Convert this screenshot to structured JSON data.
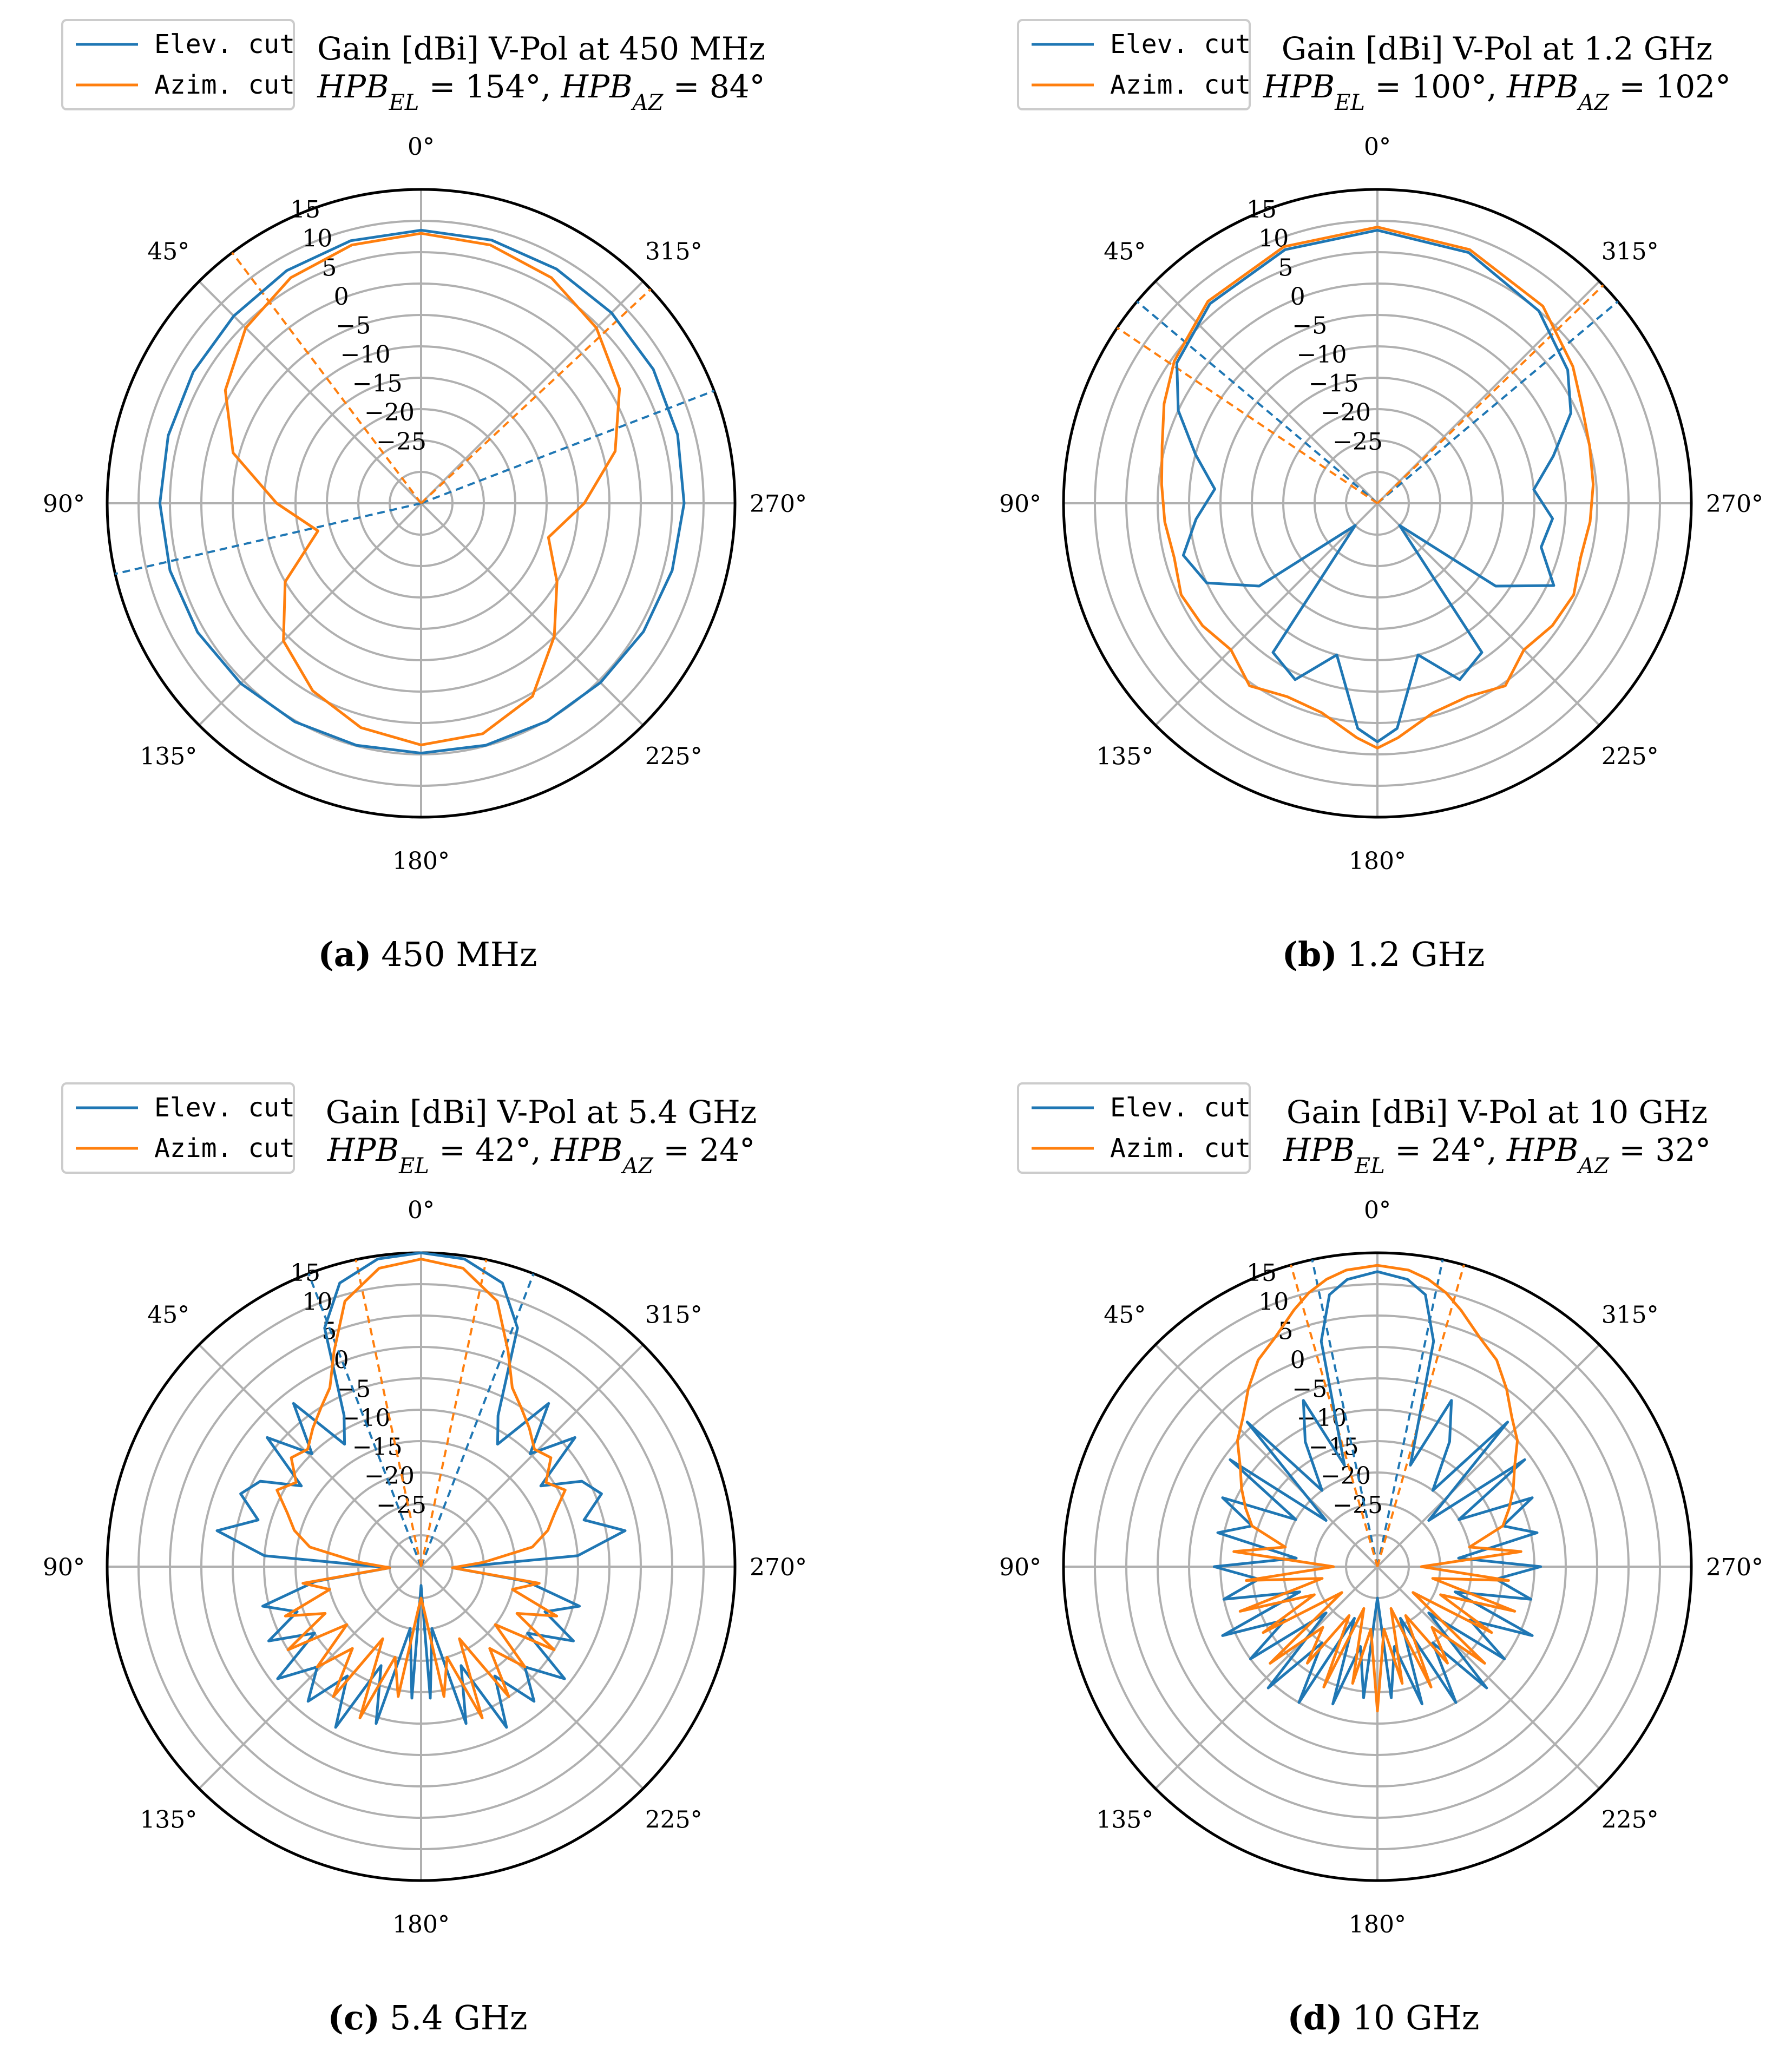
{
  "colors": {
    "elev": "#1f77b4",
    "azim": "#ff7f0e",
    "grid": "#b0b0b0",
    "frame": "#000000"
  },
  "chart_data": [
    {
      "type": "polar_line",
      "caption_letter": "(a)",
      "caption_text": "450 MHz",
      "title": "Gain [dBi] V-Pol at 450 MHz",
      "subtitle": "HPB_EL = 154°, HPB_AZ = 84°",
      "theta_direction": "counterclockwise",
      "theta_zero": "top",
      "rlim": [
        -35,
        15
      ],
      "radial_ticks": [
        "15",
        "10",
        "5",
        "0",
        "−5",
        "−10",
        "−15",
        "−20",
        "−25"
      ],
      "angle_labels": [
        "0°",
        "45°",
        "90°",
        "135°",
        "180°",
        "225°",
        "270°",
        "315°"
      ],
      "legend": {
        "location": "top-left",
        "entries": [
          "Elev. cut",
          "Azim. cut"
        ]
      },
      "hpb_lines": {
        "elev": [
          103,
          291
        ],
        "azim": [
          37,
          313
        ]
      },
      "series": [
        {
          "name": "Elev. cut",
          "color": "elev",
          "theta": [
            0,
            15,
            30,
            45,
            60,
            75,
            90,
            105,
            120,
            135,
            150,
            165,
            180,
            195,
            210,
            225,
            240,
            255,
            270,
            285,
            300,
            315,
            330,
            345,
            360
          ],
          "r": [
            8.5,
            8.3,
            7.8,
            7.2,
            6.9,
            6.7,
            6.6,
            6.4,
            6.1,
            5.6,
            5.2,
            4.9,
            4.8,
            4.9,
            5.1,
            5.4,
            5.9,
            6.4,
            6.9,
            7.3,
            7.7,
            7.9,
            8.1,
            8.4,
            8.5
          ]
        },
        {
          "name": "Azim. cut",
          "color": "azim",
          "theta": [
            0,
            15,
            30,
            45,
            60,
            75,
            90,
            105,
            120,
            135,
            150,
            165,
            180,
            195,
            210,
            225,
            240,
            255,
            270,
            285,
            300,
            315,
            330,
            345,
            360
          ],
          "r": [
            8.0,
            7.6,
            6.5,
            4.5,
            1.0,
            -4.0,
            -12.0,
            -18.0,
            -10.0,
            -4.0,
            -0.5,
            2.0,
            3.5,
            3.0,
            0.5,
            -5.0,
            -10.0,
            -14.0,
            -9.0,
            -3.0,
            1.5,
            4.5,
            6.5,
            7.6,
            8.0
          ]
        }
      ]
    },
    {
      "type": "polar_line",
      "caption_letter": "(b)",
      "caption_text": "1.2 GHz",
      "title": "Gain [dBi] V-Pol at 1.2 GHz",
      "subtitle": "HPB_EL = 100°, HPB_AZ = 102°",
      "theta_direction": "counterclockwise",
      "theta_zero": "top",
      "rlim": [
        -35,
        15
      ],
      "radial_ticks": [
        "15",
        "10",
        "5",
        "0",
        "−5",
        "−10",
        "−15",
        "−20",
        "−25"
      ],
      "angle_labels": [
        "0°",
        "45°",
        "90°",
        "135°",
        "180°",
        "225°",
        "270°",
        "315°"
      ],
      "legend": {
        "location": "top-left",
        "entries": [
          "Elev. cut",
          "Azim. cut"
        ]
      },
      "hpb_lines": {
        "elev": [
          50,
          310
        ],
        "azim": [
          56,
          314
        ]
      },
      "series": [
        {
          "name": "Elev. cut",
          "color": "elev",
          "theta": [
            0,
            20,
            40,
            55,
            65,
            75,
            85,
            95,
            105,
            115,
            125,
            135,
            145,
            155,
            165,
            175,
            180,
            185,
            195,
            205,
            215,
            225,
            235,
            245,
            255,
            265,
            275,
            285,
            295,
            305,
            320,
            340,
            360
          ],
          "r": [
            8.5,
            8.0,
            6.5,
            4.0,
            0.0,
            -5.0,
            -9.0,
            -6.0,
            -3.0,
            -5.0,
            -12.0,
            -30.0,
            -6.0,
            -4.0,
            -10.0,
            1.0,
            3.0,
            1.0,
            -10.0,
            -4.0,
            -6.0,
            -30.0,
            -12.0,
            -4.0,
            -8.0,
            -7.0,
            -10.0,
            -6.0,
            -1.0,
            2.0,
            5.0,
            7.5,
            8.5
          ]
        },
        {
          "name": "Azim. cut",
          "color": "azim",
          "theta": [
            0,
            20,
            40,
            55,
            65,
            75,
            85,
            95,
            105,
            115,
            125,
            135,
            145,
            155,
            165,
            175,
            180,
            185,
            195,
            205,
            215,
            225,
            235,
            245,
            255,
            265,
            275,
            285,
            295,
            305,
            320,
            340,
            360
          ],
          "r": [
            9.0,
            8.5,
            7.0,
            4.5,
            2.5,
            0.5,
            -0.5,
            -1.0,
            -1.5,
            -0.5,
            -1.0,
            -2.0,
            0.5,
            -1.0,
            -0.5,
            2.5,
            4.0,
            2.5,
            -0.5,
            -1.0,
            0.5,
            -2.0,
            -1.0,
            -0.5,
            -1.5,
            -1.0,
            -0.5,
            0.0,
            1.0,
            3.0,
            6.0,
            8.0,
            9.0
          ]
        }
      ]
    },
    {
      "type": "polar_line",
      "caption_letter": "(c)",
      "caption_text": "5.4 GHz",
      "title": "Gain [dBi] V-Pol at 5.4 GHz",
      "subtitle": "HPB_EL = 42°, HPB_AZ = 24°",
      "theta_direction": "counterclockwise",
      "theta_zero": "top",
      "rlim": [
        -35,
        15
      ],
      "radial_ticks": [
        "15",
        "10",
        "5",
        "0",
        "−5",
        "−10",
        "−15",
        "−20",
        "−25"
      ],
      "angle_labels": [
        "0°",
        "45°",
        "90°",
        "135°",
        "180°",
        "225°",
        "270°",
        "315°"
      ],
      "legend": {
        "location": "top-left",
        "entries": [
          "Elev. cut",
          "Azim. cut"
        ]
      },
      "hpb_lines": {
        "elev": [
          21,
          339
        ],
        "azim": [
          12,
          348
        ]
      },
      "series": [
        {
          "name": "Elev. cut",
          "color": "elev",
          "theta": [
            0,
            8,
            16,
            22,
            27,
            32,
            38,
            44,
            50,
            56,
            62,
            68,
            74,
            80,
            86,
            92,
            98,
            104,
            110,
            116,
            122,
            128,
            134,
            140,
            146,
            152,
            158,
            164,
            170,
            176,
            180,
            184,
            190,
            196,
            202,
            208,
            214,
            220,
            226,
            232,
            238,
            244,
            250,
            256,
            262,
            268,
            274,
            280,
            286,
            292,
            298,
            304,
            310,
            316,
            322,
            328,
            333,
            338,
            344,
            352,
            360
          ],
          "r": [
            15.0,
            14.5,
            12.0,
            6.0,
            -8.0,
            -12.0,
            -2.0,
            -10.0,
            -3.0,
            -12.0,
            -6.0,
            -4.0,
            -8.0,
            -2.0,
            -10.0,
            -30.0,
            -18.0,
            -9.0,
            -14.0,
            -8.0,
            -15.0,
            -6.0,
            -12.0,
            -7.0,
            -14.0,
            -6.0,
            -18.0,
            -9.0,
            -25.0,
            -14.0,
            -32.0,
            -14.0,
            -25.0,
            -9.0,
            -18.0,
            -6.0,
            -14.0,
            -7.0,
            -12.0,
            -6.0,
            -15.0,
            -8.0,
            -14.0,
            -9.0,
            -18.0,
            -30.0,
            -10.0,
            -2.0,
            -8.0,
            -4.0,
            -6.0,
            -12.0,
            -3.0,
            -10.0,
            -2.0,
            -12.0,
            -8.0,
            6.0,
            12.0,
            14.5,
            15.0
          ]
        },
        {
          "name": "Azim. cut",
          "color": "azim",
          "theta": [
            0,
            8,
            16,
            22,
            27,
            32,
            38,
            44,
            50,
            56,
            62,
            68,
            74,
            80,
            86,
            92,
            98,
            104,
            110,
            116,
            122,
            128,
            134,
            140,
            146,
            152,
            158,
            164,
            170,
            176,
            180,
            184,
            190,
            196,
            202,
            208,
            214,
            220,
            226,
            232,
            238,
            244,
            250,
            256,
            262,
            268,
            274,
            280,
            286,
            292,
            298,
            304,
            310,
            316,
            322,
            328,
            333,
            338,
            344,
            352,
            360
          ],
          "r": [
            14.0,
            13.0,
            9.0,
            2.0,
            -3.0,
            -5.0,
            -7.0,
            -9.0,
            -8.0,
            -11.0,
            -9.0,
            -12.0,
            -14.0,
            -17.0,
            -25.0,
            -30.0,
            -16.0,
            -20.0,
            -12.0,
            -18.0,
            -10.0,
            -20.0,
            -12.0,
            -18.0,
            -10.0,
            -22.0,
            -9.0,
            -20.0,
            -14.0,
            -28.0,
            -30.0,
            -28.0,
            -14.0,
            -20.0,
            -9.0,
            -22.0,
            -10.0,
            -18.0,
            -12.0,
            -20.0,
            -10.0,
            -18.0,
            -12.0,
            -20.0,
            -16.0,
            -30.0,
            -25.0,
            -17.0,
            -14.0,
            -12.0,
            -9.0,
            -11.0,
            -8.0,
            -9.0,
            -7.0,
            -5.0,
            -3.0,
            2.0,
            9.0,
            13.0,
            14.0
          ]
        }
      ]
    },
    {
      "type": "polar_line",
      "caption_letter": "(d)",
      "caption_text": "10 GHz",
      "title": "Gain [dBi] V-Pol at 10 GHz",
      "subtitle": "HPB_EL = 24°, HPB_AZ = 32°",
      "theta_direction": "counterclockwise",
      "theta_zero": "top",
      "rlim": [
        -35,
        15
      ],
      "radial_ticks": [
        "15",
        "10",
        "5",
        "0",
        "−5",
        "−10",
        "−15",
        "−20",
        "−25"
      ],
      "angle_labels": [
        "0°",
        "45°",
        "90°",
        "135°",
        "180°",
        "225°",
        "270°",
        "315°"
      ],
      "legend": {
        "location": "top-left",
        "entries": [
          "Elev. cut",
          "Azim. cut"
        ]
      },
      "hpb_lines": {
        "elev": [
          12,
          348
        ],
        "azim": [
          16,
          344
        ]
      },
      "series": [
        {
          "name": "Elev. cut",
          "color": "elev",
          "theta": [
            0,
            6,
            10,
            14,
            18,
            24,
            30,
            36,
            42,
            48,
            54,
            60,
            66,
            72,
            78,
            84,
            90,
            96,
            102,
            108,
            114,
            120,
            126,
            132,
            138,
            144,
            150,
            156,
            162,
            168,
            174,
            180,
            186,
            192,
            198,
            204,
            210,
            216,
            222,
            228,
            234,
            240,
            246,
            252,
            258,
            264,
            270,
            276,
            282,
            288,
            294,
            300,
            306,
            312,
            318,
            324,
            330,
            336,
            342,
            346,
            350,
            354,
            360
          ],
          "r": [
            12.0,
            11.0,
            9.0,
            2.0,
            -18.0,
            -6.0,
            -12.0,
            -20.0,
            -4.0,
            -24.0,
            -6.0,
            -20.0,
            -8.0,
            -14.0,
            -9.0,
            -22.0,
            -9.0,
            -16.0,
            -10.0,
            -22.0,
            -8.0,
            -18.0,
            -10.0,
            -24.0,
            -9.0,
            -20.0,
            -10.0,
            -26.0,
            -12.0,
            -22.0,
            -14.0,
            -30.0,
            -14.0,
            -22.0,
            -12.0,
            -26.0,
            -10.0,
            -20.0,
            -9.0,
            -24.0,
            -10.0,
            -18.0,
            -8.0,
            -22.0,
            -10.0,
            -16.0,
            -9.0,
            -22.0,
            -9.0,
            -14.0,
            -8.0,
            -20.0,
            -6.0,
            -24.0,
            -4.0,
            -20.0,
            -12.0,
            -6.0,
            -18.0,
            2.0,
            9.0,
            11.0,
            12.0
          ]
        },
        {
          "name": "Azim. cut",
          "color": "azim",
          "theta": [
            0,
            6,
            10,
            14,
            18,
            24,
            30,
            36,
            42,
            48,
            54,
            60,
            66,
            72,
            78,
            84,
            90,
            96,
            102,
            108,
            114,
            120,
            126,
            132,
            138,
            144,
            150,
            156,
            162,
            168,
            174,
            180,
            186,
            192,
            198,
            204,
            210,
            216,
            222,
            228,
            234,
            240,
            246,
            252,
            258,
            264,
            270,
            276,
            282,
            288,
            294,
            300,
            306,
            312,
            318,
            324,
            330,
            336,
            342,
            346,
            350,
            354,
            360
          ],
          "r": [
            13.0,
            12.5,
            11.5,
            10.0,
            8.0,
            5.0,
            3.0,
            0.0,
            -3.0,
            -5.0,
            -8.0,
            -10.0,
            -12.0,
            -14.0,
            -20.0,
            -12.0,
            -28.0,
            -14.0,
            -26.0,
            -12.0,
            -24.0,
            -14.0,
            -28.0,
            -12.0,
            -22.0,
            -16.0,
            -26.0,
            -14.0,
            -28.0,
            -16.0,
            -25.0,
            -12.0,
            -25.0,
            -16.0,
            -28.0,
            -14.0,
            -26.0,
            -16.0,
            -22.0,
            -12.0,
            -28.0,
            -14.0,
            -24.0,
            -12.0,
            -26.0,
            -14.0,
            -28.0,
            -12.0,
            -20.0,
            -14.0,
            -12.0,
            -10.0,
            -8.0,
            -5.0,
            -3.0,
            0.0,
            3.0,
            5.0,
            8.0,
            10.0,
            11.5,
            12.5,
            13.0
          ]
        }
      ]
    }
  ]
}
